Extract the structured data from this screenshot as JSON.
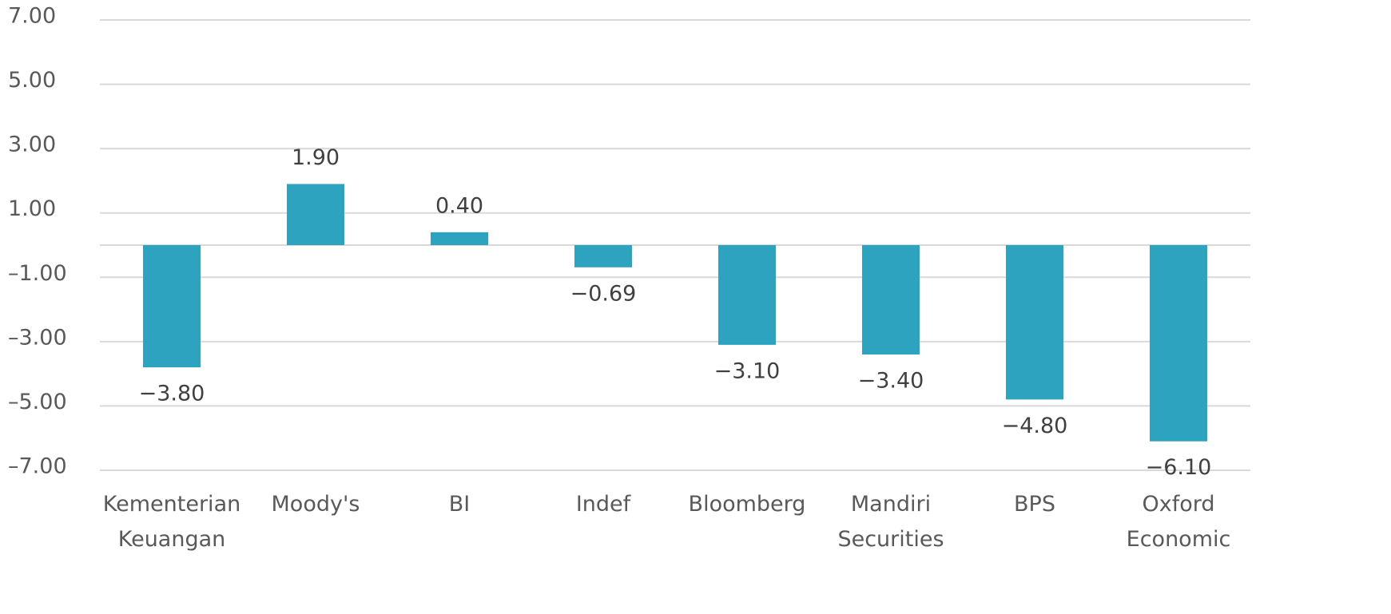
{
  "chart_data": {
    "type": "bar",
    "categories": [
      "Kementerian Keuangan",
      "Moody's",
      "BI",
      "Indef",
      "Bloomberg",
      "Mandiri Securities",
      "BPS",
      "Oxford Economic"
    ],
    "values": [
      -3.8,
      1.9,
      0.4,
      -0.69,
      -3.1,
      -3.4,
      -4.8,
      -6.1
    ],
    "value_labels": [
      "−3.80",
      "1.90",
      "0.40",
      "−0.69",
      "−3.10",
      "−3.40",
      "−4.80",
      "−6.10"
    ],
    "color": "#2ea3bf",
    "ylim": [
      -7,
      7
    ],
    "yticks": [
      {
        "value": 7,
        "label": "7.00"
      },
      {
        "value": 5,
        "label": "5.00"
      },
      {
        "value": 3,
        "label": "3.00"
      },
      {
        "value": 1,
        "label": "1.00"
      },
      {
        "value": -1,
        "label": "–1.00"
      },
      {
        "value": -3,
        "label": "–3.00"
      },
      {
        "value": -5,
        "label": "–5.00"
      },
      {
        "value": -7,
        "label": "–7.00"
      }
    ],
    "grid": true
  }
}
